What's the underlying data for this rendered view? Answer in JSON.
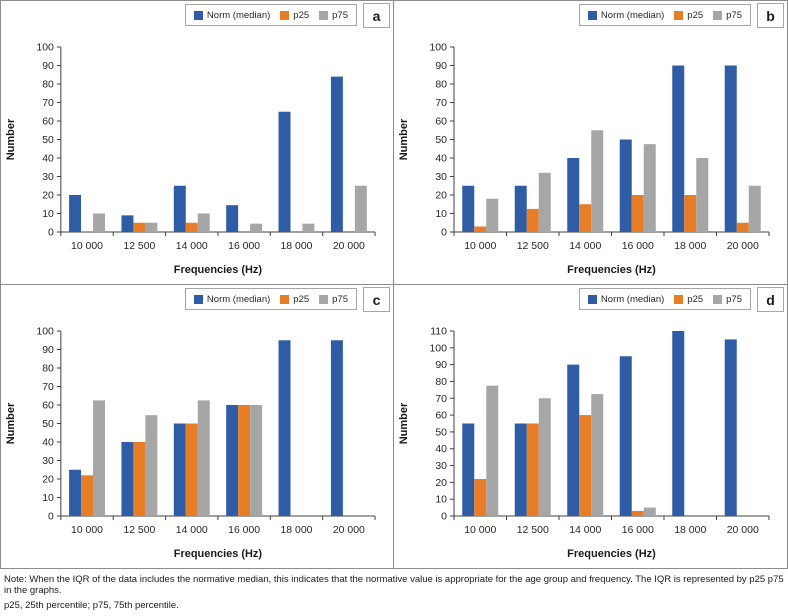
{
  "colors": {
    "norm": "#2e5da6",
    "p25": "#e87d27",
    "p75": "#a6a6a6"
  },
  "legend": {
    "norm": "Norm (median)",
    "p25": "p25",
    "p75": "p75"
  },
  "footer": {
    "note": "Note: When the IQR of the data includes the normative median, this indicates that the normative value is appropriate for the age group and frequency. The IQR is represented by p25 p75 in the graphs.",
    "percentiles": "p25, 25th percentile; p75, 75th percentile."
  },
  "chart_data": [
    {
      "type": "bar",
      "panel": "a",
      "xlabel": "Frequencies (Hz)",
      "ylabel": "Number",
      "ylim": [
        0,
        100
      ],
      "ytick_step": 10,
      "grid": false,
      "legend_position": "top-right",
      "categories": [
        "10 000",
        "12 500",
        "14 000",
        "16 000",
        "18 000",
        "20 000"
      ],
      "series": [
        {
          "name": "Norm (median)",
          "values": [
            20,
            9,
            25,
            14.5,
            65,
            84
          ]
        },
        {
          "name": "p25",
          "values": [
            0,
            5,
            5,
            0,
            0,
            0.5
          ]
        },
        {
          "name": "p75",
          "values": [
            10,
            5,
            10,
            4.5,
            4.5,
            25
          ]
        }
      ]
    },
    {
      "type": "bar",
      "panel": "b",
      "xlabel": "Frequencies (Hz)",
      "ylabel": "Number",
      "ylim": [
        0,
        100
      ],
      "ytick_step": 10,
      "grid": false,
      "legend_position": "top-right",
      "categories": [
        "10 000",
        "12 500",
        "14 000",
        "16 000",
        "18 000",
        "20 000"
      ],
      "series": [
        {
          "name": "Norm (median)",
          "values": [
            25,
            25,
            40,
            50,
            90,
            90
          ]
        },
        {
          "name": "p25",
          "values": [
            3,
            12.5,
            15,
            20,
            20,
            5
          ]
        },
        {
          "name": "p75",
          "values": [
            18,
            32,
            55,
            47.5,
            40,
            25
          ]
        }
      ]
    },
    {
      "type": "bar",
      "panel": "c",
      "xlabel": "Frequencies (Hz)",
      "ylabel": "Number",
      "ylim": [
        0,
        100
      ],
      "ytick_step": 10,
      "grid": false,
      "legend_position": "top-right",
      "categories": [
        "10 000",
        "12 500",
        "14 000",
        "16 000",
        "18 000",
        "20 000"
      ],
      "series": [
        {
          "name": "Norm (median)",
          "values": [
            25,
            40,
            50,
            60,
            95,
            95
          ]
        },
        {
          "name": "p25",
          "values": [
            22,
            40,
            50,
            60,
            0,
            0
          ]
        },
        {
          "name": "p75",
          "values": [
            62.5,
            54.5,
            62.5,
            60,
            0,
            0
          ]
        }
      ]
    },
    {
      "type": "bar",
      "panel": "d",
      "xlabel": "Frequencies (Hz)",
      "ylabel": "Number",
      "ylim": [
        0,
        110
      ],
      "ytick_step": 10,
      "grid": false,
      "legend_position": "top-right",
      "categories": [
        "10 000",
        "12 500",
        "14 000",
        "16 000",
        "18 000",
        "20 000"
      ],
      "series": [
        {
          "name": "Norm (median)",
          "values": [
            55,
            55,
            90,
            95,
            110,
            105
          ]
        },
        {
          "name": "p25",
          "values": [
            22,
            55,
            60,
            3,
            0,
            0
          ]
        },
        {
          "name": "p75",
          "values": [
            77.5,
            70,
            72.5,
            5,
            0,
            0
          ]
        }
      ]
    }
  ]
}
